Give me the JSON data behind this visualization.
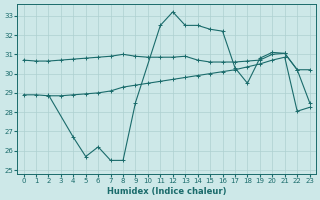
{
  "xlabel": "Humidex (Indice chaleur)",
  "background_color": "#cde8e8",
  "grid_color": "#aed0d0",
  "line_color": "#1a6b6b",
  "xlim": [
    -0.5,
    23.5
  ],
  "ylim": [
    24.8,
    33.6
  ],
  "yticks": [
    25,
    26,
    27,
    28,
    29,
    30,
    31,
    32,
    33
  ],
  "xticks": [
    0,
    1,
    2,
    3,
    4,
    5,
    6,
    7,
    8,
    9,
    10,
    11,
    12,
    13,
    14,
    15,
    16,
    17,
    18,
    19,
    20,
    21,
    22,
    23
  ],
  "upper_x": [
    0,
    1,
    2,
    3,
    4,
    5,
    6,
    7,
    8,
    9,
    10,
    11,
    12,
    13,
    14,
    15,
    16,
    17,
    18,
    19,
    20,
    21,
    22,
    23
  ],
  "upper_y": [
    30.7,
    30.65,
    30.65,
    30.7,
    30.75,
    30.8,
    30.85,
    30.9,
    31.0,
    30.9,
    30.85,
    30.85,
    30.85,
    30.9,
    30.7,
    30.6,
    30.6,
    30.6,
    30.65,
    30.7,
    31.0,
    31.05,
    30.2,
    30.2
  ],
  "lower_x": [
    0,
    1,
    2,
    3,
    4,
    5,
    6,
    7,
    8,
    9,
    10,
    11,
    12,
    13,
    14,
    15,
    16,
    17,
    18,
    19,
    20,
    21,
    22,
    23
  ],
  "lower_y": [
    28.9,
    28.9,
    28.85,
    28.85,
    28.9,
    28.95,
    29.0,
    29.1,
    29.3,
    29.4,
    29.5,
    29.6,
    29.7,
    29.8,
    29.9,
    30.0,
    30.1,
    30.2,
    30.35,
    30.5,
    30.7,
    30.85,
    28.05,
    28.25
  ],
  "main_x": [
    2,
    4,
    5,
    6,
    7,
    8,
    9,
    11,
    12,
    13,
    14,
    15,
    16,
    17,
    18,
    19,
    20,
    21,
    22,
    23
  ],
  "main_y": [
    28.9,
    26.7,
    25.7,
    26.2,
    25.5,
    25.5,
    28.5,
    32.5,
    33.2,
    32.5,
    32.5,
    32.3,
    32.2,
    30.3,
    29.5,
    30.8,
    31.1,
    31.05,
    30.2,
    28.5
  ]
}
